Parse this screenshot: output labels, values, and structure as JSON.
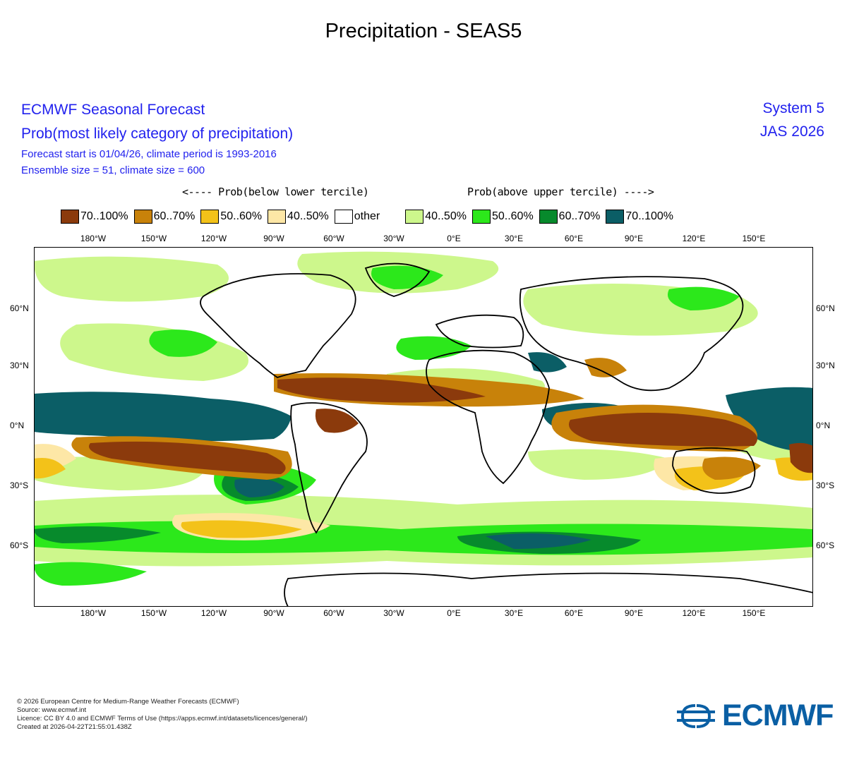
{
  "page_title": "Precipitation - SEAS5",
  "header": {
    "org_title": "ECMWF Seasonal Forecast",
    "product": "Prob(most likely category of precipitation)",
    "forecast_info": "Forecast start is 01/04/26, climate period is 1993-2016",
    "ensemble_info": "Ensemble size = 51, climate size = 600",
    "system": "System 5",
    "season": "JAS 2026"
  },
  "legend": {
    "below_label": "<---- Prob(below lower tercile)",
    "above_label": "Prob(above upper tercile) ---->",
    "items": [
      {
        "label": "70..100%",
        "color": "#8b3a0c"
      },
      {
        "label": "60..70%",
        "color": "#c8820a"
      },
      {
        "label": "50..60%",
        "color": "#f3c219"
      },
      {
        "label": "40..50%",
        "color": "#fde7a6"
      },
      {
        "label": "other",
        "color": "#ffffff"
      },
      {
        "label": "40..50%",
        "color": "#cdf78c"
      },
      {
        "label": "50..60%",
        "color": "#2ce81b"
      },
      {
        "label": "60..70%",
        "color": "#078a2c"
      },
      {
        "label": "70..100%",
        "color": "#0b5e66"
      }
    ]
  },
  "map": {
    "lon_labels": [
      "180°W",
      "150°W",
      "120°W",
      "90°W",
      "60°W",
      "30°W",
      "0°E",
      "30°E",
      "60°E",
      "90°E",
      "120°E",
      "150°E"
    ],
    "lat_labels": [
      "60°N",
      "30°N",
      "0°N",
      "30°S",
      "60°S"
    ]
  },
  "footer": {
    "lines": [
      "© 2026 European Centre for Medium-Range Weather Forecasts (ECMWF)",
      "Source: www.ecmwf.int",
      "Licence: CC BY 4.0 and ECMWF Terms of Use (https://apps.ecmwf.int/datasets/licences/general/)",
      "Created at 2026-04-22T21:55:01.438Z"
    ]
  },
  "logo": {
    "text": "ECMWF",
    "color": "#0a5fa4"
  }
}
